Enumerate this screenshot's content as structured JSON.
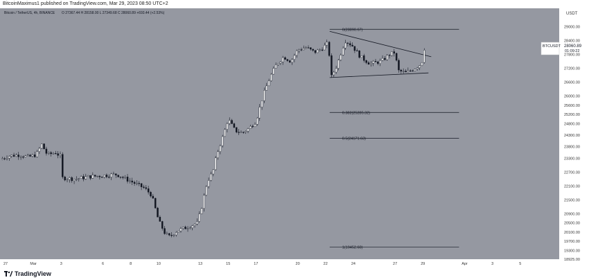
{
  "header": {
    "publisher": "BitcoinMaximus1",
    "published_text": "published on TradingView.com, Mar 29, 2023 08:50 UTC+2",
    "symbol_line": "Bitcoin / TetherUS, 4h, BINANCE",
    "ohlc": "O 27367.44  H 28158.00  L 27349.68  C 28060.89  +693.44 (+2.53%)"
  },
  "price_axis": {
    "unit": "USDT",
    "current_symbol": "BTCUSDT",
    "current_price": "28060.89",
    "countdown": "01:09:22"
  },
  "footer": {
    "brand": "TradingView"
  },
  "colors": {
    "background": "#9598a1",
    "axis_background": "#ffffff",
    "candle_up": "#ffffff",
    "candle_down": "#131722",
    "wick": "#131722",
    "line": "#131722"
  },
  "chart_data": {
    "type": "candlestick",
    "ylim": [
      18925,
      29800
    ],
    "y_ticks": [
      29000,
      28400,
      27800,
      27200,
      26600,
      26000,
      25600,
      25200,
      24800,
      24300,
      23800,
      23300,
      22700,
      22100,
      21500,
      20900,
      20500,
      20100,
      19700,
      19300,
      18925
    ],
    "y_tick_labels": [
      "29000.00",
      "28400.00",
      "27800.00",
      "27200.00",
      "26600.00",
      "26000.00",
      "25600.00",
      "25200.00",
      "24800.00",
      "24300.00",
      "23800.00",
      "23300.00",
      "22700.00",
      "22100.00",
      "21500.00",
      "20900.00",
      "20500.00",
      "20100.00",
      "19700.00",
      "19300.00",
      "18925.00"
    ],
    "x_ticks": [
      {
        "label": "27",
        "day": -2
      },
      {
        "label": "Mar",
        "day": 0
      },
      {
        "label": "3",
        "day": 2
      },
      {
        "label": "6",
        "day": 5
      },
      {
        "label": "8",
        "day": 7
      },
      {
        "label": "10",
        "day": 9
      },
      {
        "label": "13",
        "day": 12
      },
      {
        "label": "15",
        "day": 14
      },
      {
        "label": "17",
        "day": 16
      },
      {
        "label": "20",
        "day": 19
      },
      {
        "label": "22",
        "day": 21
      },
      {
        "label": "24",
        "day": 23
      },
      {
        "label": "27",
        "day": 26
      },
      {
        "label": "29",
        "day": 28
      },
      {
        "label": "Apr",
        "day": 31
      },
      {
        "label": "3",
        "day": 33
      },
      {
        "label": "5",
        "day": 35
      }
    ],
    "xlim_days": [
      -2.4,
      37.8
    ],
    "price_anchors": [
      [
        -2.4,
        23250
      ],
      [
        -1.8,
        23400
      ],
      [
        -1.0,
        23450
      ],
      [
        -0.4,
        23350
      ],
      [
        0.2,
        23450
      ],
      [
        0.6,
        23900
      ],
      [
        1.0,
        23450
      ],
      [
        1.6,
        23550
      ],
      [
        2.0,
        23350
      ],
      [
        2.1,
        22450
      ],
      [
        3.0,
        22400
      ],
      [
        4.0,
        22500
      ],
      [
        5.0,
        22550
      ],
      [
        6.0,
        22600
      ],
      [
        7.0,
        22300
      ],
      [
        8.0,
        22000
      ],
      [
        8.5,
        21700
      ],
      [
        9.0,
        20600
      ],
      [
        9.5,
        20000
      ],
      [
        9.8,
        19900
      ],
      [
        10.3,
        20150
      ],
      [
        11.0,
        20300
      ],
      [
        11.8,
        20500
      ],
      [
        12.1,
        21200
      ],
      [
        12.5,
        22300
      ],
      [
        12.9,
        22700
      ],
      [
        13.2,
        23500
      ],
      [
        13.6,
        24200
      ],
      [
        14.0,
        25000
      ],
      [
        14.5,
        24500
      ],
      [
        15.0,
        24400
      ],
      [
        15.5,
        24600
      ],
      [
        16.0,
        24900
      ],
      [
        16.5,
        26000
      ],
      [
        17.0,
        26800
      ],
      [
        17.5,
        27400
      ],
      [
        18.0,
        27700
      ],
      [
        18.5,
        27500
      ],
      [
        19.0,
        28000
      ],
      [
        19.6,
        28100
      ],
      [
        20.2,
        27900
      ],
      [
        20.6,
        28000
      ],
      [
        21.2,
        28300
      ],
      [
        21.4,
        26800
      ],
      [
        21.8,
        27300
      ],
      [
        22.4,
        28400
      ],
      [
        22.9,
        28200
      ],
      [
        23.5,
        27700
      ],
      [
        24.2,
        27400
      ],
      [
        25.0,
        27500
      ],
      [
        25.6,
        27800
      ],
      [
        26.0,
        27900
      ],
      [
        26.2,
        27100
      ],
      [
        26.8,
        27000
      ],
      [
        27.4,
        27200
      ],
      [
        27.9,
        27400
      ],
      [
        28.1,
        28060
      ]
    ],
    "fib_levels": [
      {
        "label": "0(28890.67)",
        "price": 28890.67
      },
      {
        "label": "0.382(25285.32)",
        "price": 25285.32
      },
      {
        "label": "0.5(24171.63)",
        "price": 24171.63
      },
      {
        "label": "1(19452.60)",
        "price": 19452.6
      }
    ],
    "fib_line_days": [
      21.3,
      30.6
    ],
    "triangle": {
      "upper": [
        [
          21.3,
          28800
        ],
        [
          28.6,
          27700
        ]
      ],
      "lower": [
        [
          21.3,
          26800
        ],
        [
          28.4,
          27000
        ]
      ]
    }
  }
}
